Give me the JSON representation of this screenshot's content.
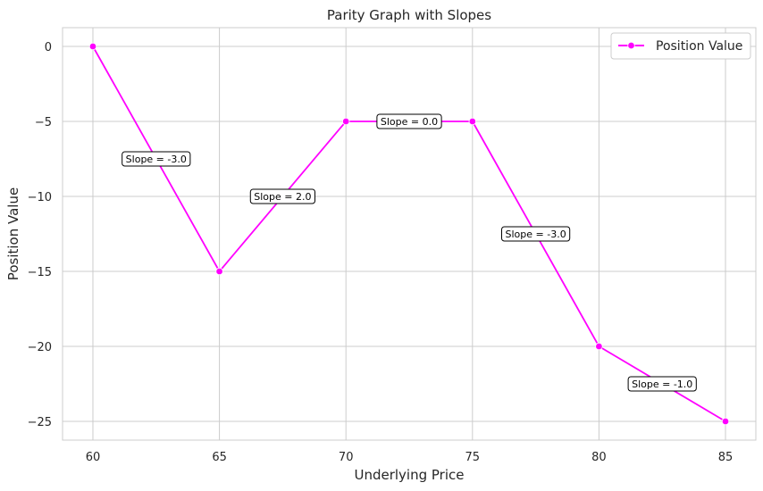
{
  "chart_data": {
    "type": "line",
    "title": "Parity Graph with Slopes",
    "xlabel": "Underlying Price",
    "ylabel": "Position Value",
    "xlim": [
      58.8,
      86.2
    ],
    "ylim": [
      -26.25,
      1.25
    ],
    "xticks": [
      60,
      65,
      70,
      75,
      80,
      85
    ],
    "yticks": [
      0,
      -5,
      -10,
      -15,
      -20,
      -25
    ],
    "xtick_labels": [
      "60",
      "65",
      "70",
      "75",
      "80",
      "85"
    ],
    "ytick_labels": [
      "0",
      "−5",
      "−10",
      "−15",
      "−20",
      "−25"
    ],
    "grid": true,
    "legend": {
      "position": "top-right"
    },
    "series": [
      {
        "name": "Position Value",
        "color": "#ff00ff",
        "marker": "circle",
        "x": [
          60,
          65,
          70,
          75,
          80,
          85
        ],
        "y": [
          0,
          -15,
          -5,
          -5,
          -20,
          -25
        ]
      }
    ],
    "annotations": [
      {
        "text": "Slope = -3.0",
        "x": 62.5,
        "y": -7.5
      },
      {
        "text": "Slope = 2.0",
        "x": 67.5,
        "y": -10
      },
      {
        "text": "Slope = 0.0",
        "x": 72.5,
        "y": -5
      },
      {
        "text": "Slope = -3.0",
        "x": 77.5,
        "y": -12.5
      },
      {
        "text": "Slope = -1.0",
        "x": 82.5,
        "y": -22.5
      }
    ]
  }
}
